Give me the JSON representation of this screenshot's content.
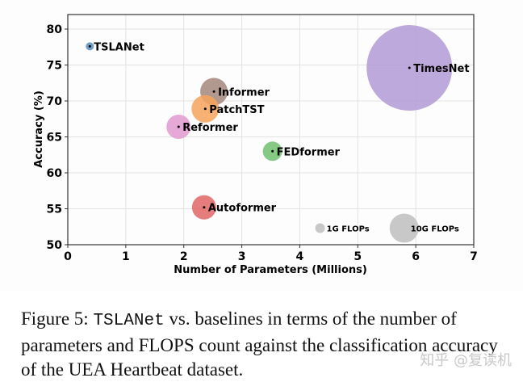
{
  "chart_data": {
    "type": "scatter",
    "subtype": "bubble",
    "title": "",
    "xlabel": "Number of Parameters (Millions)",
    "ylabel": "Accuracy (%)",
    "xlim": [
      0,
      7
    ],
    "ylim": [
      50,
      82
    ],
    "xticks": [
      0,
      1,
      2,
      3,
      4,
      5,
      6,
      7
    ],
    "yticks": [
      50,
      55,
      60,
      65,
      70,
      75,
      80
    ],
    "grid": true,
    "points": [
      {
        "name": "TSLANet",
        "x": 0.38,
        "y": 77.6,
        "flops_radius_px": 5,
        "color": "#5b8db8"
      },
      {
        "name": "Informer",
        "x": 2.52,
        "y": 71.3,
        "flops_radius_px": 17,
        "color": "#a5877c"
      },
      {
        "name": "PatchTST",
        "x": 2.37,
        "y": 68.9,
        "flops_radius_px": 17,
        "color": "#f7a35c"
      },
      {
        "name": "Reformer",
        "x": 1.91,
        "y": 66.4,
        "flops_radius_px": 15,
        "color": "#e29ad0"
      },
      {
        "name": "FEDformer",
        "x": 3.53,
        "y": 63.0,
        "flops_radius_px": 12,
        "color": "#70c070"
      },
      {
        "name": "Autoformer",
        "x": 2.35,
        "y": 55.2,
        "flops_radius_px": 15,
        "color": "#e06666"
      },
      {
        "name": "TimesNet",
        "x": 5.89,
        "y": 74.6,
        "flops_radius_px": 53,
        "color": "#b39ad6"
      }
    ],
    "legend": [
      {
        "label": "1G FLOPs",
        "x": 4.35,
        "y": 52.3,
        "radius_px": 6,
        "color": "#c8c8c8"
      },
      {
        "label": "10G FLOPs",
        "x": 5.8,
        "y": 52.3,
        "radius_px": 18,
        "color": "#c8c8c8"
      }
    ]
  },
  "caption": {
    "prefix": "Figure 5: ",
    "model": "TSLANet",
    "rest": " vs. baselines in terms of the number of parameters and FLOPS count against the classification accuracy of the UEA Heartbeat dataset."
  },
  "watermark": "知乎 @复读机"
}
